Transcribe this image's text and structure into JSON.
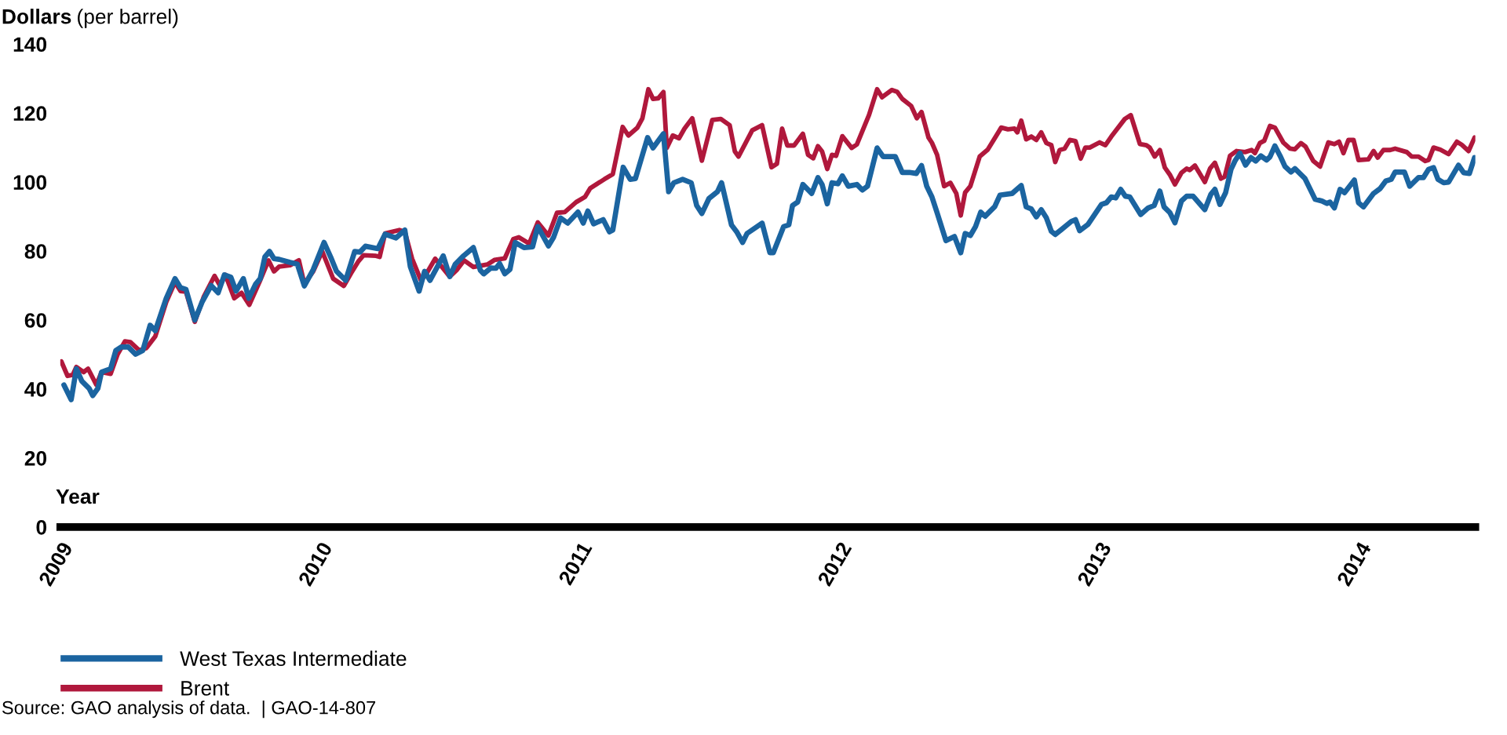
{
  "chart_data": {
    "type": "line",
    "ylabel": "Dollars (per barrel)",
    "xlabel": "Year",
    "xlim": [
      2009,
      2014.45
    ],
    "xticks": [
      2009,
      2010,
      2011,
      2012,
      2013,
      2014
    ],
    "ylim": [
      0,
      140
    ],
    "yticks": [
      0,
      20,
      40,
      60,
      80,
      100,
      120,
      140
    ],
    "grid": false,
    "legend": "bottom left",
    "annotations": [
      "Source: GAO analysis of data.  | GAO-14-807"
    ],
    "series": [
      {
        "name": "West Texas Intermediate",
        "color": "#1b64a0",
        "x": [
          2009.014,
          2009.042,
          2009.062,
          2009.083,
          2009.111,
          2009.125,
          2009.145,
          2009.159,
          2009.194,
          2009.214,
          2009.235,
          2009.262,
          2009.29,
          2009.318,
          2009.346,
          2009.366,
          2009.408,
          2009.442,
          2009.463,
          2009.484,
          2009.518,
          2009.546,
          2009.581,
          2009.608,
          2009.632,
          2009.657,
          2009.677,
          2009.705,
          2009.726,
          2009.753,
          2009.77,
          2009.788,
          2009.806,
          2009.823,
          2009.843,
          2009.885,
          2009.913,
          2009.94,
          2009.974,
          2010.016,
          2010.044,
          2010.064,
          2010.099,
          2010.134,
          2010.154,
          2010.175,
          2010.223,
          2010.251,
          2010.293,
          2010.327,
          2010.348,
          2010.382,
          2010.403,
          2010.424,
          2010.475,
          2010.5,
          2010.521,
          2010.553,
          2010.591,
          2010.618,
          2010.631,
          2010.658,
          2010.678,
          2010.692,
          2010.712,
          2010.732,
          2010.752,
          2010.786,
          2010.819,
          2010.839,
          2010.88,
          2010.9,
          2010.927,
          2010.954,
          2010.994,
          2011.014,
          2011.032,
          2011.054,
          2011.091,
          2011.115,
          2011.128,
          2011.168,
          2011.195,
          2011.215,
          2011.262,
          2011.283,
          2011.323,
          2011.343,
          2011.363,
          2011.397,
          2011.43,
          2011.451,
          2011.471,
          2011.498,
          2011.531,
          2011.547,
          2011.585,
          2011.605,
          2011.628,
          2011.645,
          2011.703,
          2011.733,
          2011.746,
          2011.786,
          2011.806,
          2011.82,
          2011.84,
          2011.86,
          2011.894,
          2011.918,
          2011.934,
          2011.954,
          2011.972,
          2011.995,
          2012.012,
          2012.035,
          2012.068,
          2012.089,
          2012.109,
          2012.146,
          2012.169,
          2012.216,
          2012.243,
          2012.27,
          2012.297,
          2012.317,
          2012.337,
          2012.357,
          2012.377,
          2012.411,
          2012.444,
          2012.468,
          2012.485,
          2012.505,
          2012.525,
          2012.545,
          2012.562,
          2012.599,
          2012.619,
          2012.666,
          2012.701,
          2012.72,
          2012.74,
          2012.759,
          2012.778,
          2012.798,
          2012.817,
          2012.832,
          2012.855,
          2012.894,
          2012.91,
          2012.926,
          2012.958,
          2013.01,
          2013.029,
          2013.048,
          2013.065,
          2013.084,
          2013.102,
          2013.119,
          2013.161,
          2013.19,
          2013.213,
          2013.235,
          2013.251,
          2013.273,
          2013.293,
          2013.318,
          2013.338,
          2013.363,
          2013.408,
          2013.431,
          2013.447,
          2013.466,
          2013.488,
          2013.509,
          2013.524,
          2013.543,
          2013.565,
          2013.586,
          2013.604,
          2013.624,
          2013.646,
          2013.659,
          2013.678,
          2013.698,
          2013.717,
          2013.74,
          2013.755,
          2013.794,
          2013.833,
          2013.859,
          2013.878,
          2013.89,
          2013.907,
          2013.929,
          2013.946,
          2013.984,
          2014.0,
          2014.019,
          2014.058,
          2014.083,
          2014.105,
          2014.126,
          2014.141,
          2014.177,
          2014.197,
          2014.231,
          2014.25,
          2014.27,
          2014.289,
          2014.306,
          2014.328,
          2014.347,
          2014.385,
          2014.405,
          2014.427,
          2014.447
        ],
        "values": [
          41.2,
          36.9,
          45.9,
          42.3,
          40.2,
          38.1,
          40.2,
          44.9,
          45.9,
          51.2,
          52.2,
          52.2,
          50.1,
          51.2,
          58.5,
          56.9,
          66.3,
          72.0,
          69.4,
          68.9,
          60.0,
          65.2,
          70.0,
          67.9,
          73.1,
          72.4,
          68.4,
          72.0,
          66.3,
          70.5,
          72.0,
          78.3,
          79.9,
          77.8,
          77.6,
          76.7,
          76.2,
          69.9,
          74.6,
          82.5,
          77.8,
          74.1,
          71.5,
          79.9,
          79.7,
          81.4,
          80.7,
          84.9,
          83.8,
          86.1,
          75.5,
          68.4,
          74.1,
          71.5,
          78.6,
          72.6,
          76.2,
          78.6,
          81.0,
          74.4,
          73.4,
          75.1,
          75.0,
          76.4,
          73.4,
          74.7,
          82.5,
          81.0,
          81.2,
          87.1,
          81.5,
          84.0,
          89.6,
          88.1,
          91.3,
          88.1,
          91.6,
          87.9,
          89.1,
          85.6,
          86.1,
          104.3,
          100.8,
          101.0,
          112.9,
          109.9,
          114.0,
          97.2,
          99.8,
          100.8,
          99.8,
          93.2,
          90.9,
          95.2,
          97.2,
          99.8,
          87.6,
          85.6,
          82.5,
          85.1,
          88.1,
          79.5,
          79.5,
          87.1,
          87.6,
          93.2,
          94.2,
          99.3,
          96.7,
          101.3,
          99.3,
          93.7,
          99.8,
          99.5,
          101.8,
          98.8,
          99.3,
          97.7,
          98.8,
          109.9,
          107.4,
          107.4,
          102.8,
          102.8,
          102.5,
          104.8,
          98.8,
          95.7,
          91.1,
          83.0,
          84.2,
          79.5,
          85.1,
          84.5,
          87.1,
          91.3,
          90.1,
          92.9,
          96.2,
          96.7,
          99.0,
          92.8,
          92.2,
          89.9,
          92.0,
          89.6,
          85.7,
          84.8,
          86.2,
          88.6,
          89.1,
          85.9,
          87.7,
          93.5,
          94.0,
          95.7,
          95.4,
          97.9,
          95.9,
          95.7,
          90.6,
          92.5,
          93.2,
          97.4,
          92.8,
          91.2,
          88.2,
          94.5,
          95.9,
          95.9,
          92.0,
          96.4,
          97.9,
          93.5,
          96.9,
          103.7,
          106.1,
          108.4,
          104.9,
          107.1,
          106.1,
          107.6,
          106.4,
          107.3,
          110.5,
          107.6,
          104.5,
          102.9,
          103.9,
          101.0,
          95.0,
          94.5,
          93.8,
          94.2,
          92.5,
          97.9,
          96.9,
          100.6,
          94.0,
          92.8,
          96.7,
          98.1,
          100.3,
          100.8,
          102.9,
          102.9,
          98.8,
          101.3,
          101.3,
          103.7,
          104.2,
          100.8,
          99.8,
          100.0,
          104.9,
          102.7,
          102.5,
          107.1
        ]
      },
      {
        "name": "Brent",
        "color": "#b0183c",
        "x": [
          2009.004,
          2009.028,
          2009.048,
          2009.062,
          2009.09,
          2009.107,
          2009.139,
          2009.159,
          2009.194,
          2009.221,
          2009.249,
          2009.27,
          2009.304,
          2009.332,
          2009.366,
          2009.408,
          2009.442,
          2009.463,
          2009.484,
          2009.518,
          2009.553,
          2009.594,
          2009.615,
          2009.636,
          2009.67,
          2009.698,
          2009.728,
          2009.767,
          2009.802,
          2009.823,
          2009.843,
          2009.885,
          2009.919,
          2009.94,
          2009.974,
          2010.009,
          2010.051,
          2010.092,
          2010.12,
          2010.147,
          2010.168,
          2010.216,
          2010.23,
          2010.251,
          2010.306,
          2010.327,
          2010.355,
          2010.389,
          2010.41,
          2010.444,
          2010.5,
          2010.528,
          2010.555,
          2010.591,
          2010.645,
          2010.672,
          2010.712,
          2010.745,
          2010.766,
          2010.806,
          2010.839,
          2010.88,
          2010.913,
          2010.943,
          2010.987,
          2011.021,
          2011.041,
          2011.095,
          2011.128,
          2011.166,
          2011.188,
          2011.222,
          2011.242,
          2011.265,
          2011.283,
          2011.303,
          2011.323,
          2011.336,
          2011.359,
          2011.383,
          2011.404,
          2011.434,
          2011.471,
          2011.511,
          2011.544,
          2011.578,
          2011.598,
          2011.612,
          2011.665,
          2011.703,
          2011.739,
          2011.76,
          2011.78,
          2011.8,
          2011.826,
          2011.86,
          2011.88,
          2011.9,
          2011.918,
          2011.934,
          2011.954,
          2011.972,
          2011.988,
          2012.012,
          2012.048,
          2012.068,
          2012.115,
          2012.146,
          2012.165,
          2012.203,
          2012.223,
          2012.243,
          2012.277,
          2012.299,
          2012.317,
          2012.344,
          2012.357,
          2012.377,
          2012.404,
          2012.428,
          2012.451,
          2012.468,
          2012.485,
          2012.505,
          2012.541,
          2012.572,
          2012.624,
          2012.65,
          2012.675,
          2012.686,
          2012.701,
          2012.72,
          2012.74,
          2012.759,
          2012.778,
          2012.798,
          2012.817,
          2012.832,
          2012.849,
          2012.868,
          2012.888,
          2012.91,
          2012.93,
          2012.948,
          2012.965,
          2013.003,
          2013.025,
          2013.048,
          2013.1,
          2013.123,
          2013.158,
          2013.183,
          2013.196,
          2013.215,
          2013.235,
          2013.254,
          2013.273,
          2013.293,
          2013.318,
          2013.338,
          2013.35,
          2013.37,
          2013.408,
          2013.428,
          2013.447,
          2013.47,
          2013.485,
          2013.505,
          2013.53,
          2013.563,
          2013.588,
          2013.601,
          2013.62,
          2013.637,
          2013.659,
          2013.678,
          2013.71,
          2013.736,
          2013.755,
          2013.778,
          2013.796,
          2013.826,
          2013.852,
          2013.884,
          2013.907,
          2013.925,
          2013.942,
          2013.961,
          2013.981,
          2014.0,
          2014.038,
          2014.058,
          2014.074,
          2014.096,
          2014.122,
          2014.141,
          2014.186,
          2014.205,
          2014.231,
          2014.257,
          2014.27,
          2014.289,
          2014.315,
          2014.347,
          2014.379,
          2014.398,
          2014.424,
          2014.447
        ],
        "values": [
          48.0,
          43.8,
          44.1,
          46.4,
          44.9,
          45.9,
          41.2,
          44.9,
          44.4,
          50.1,
          53.8,
          53.6,
          51.2,
          51.9,
          55.3,
          65.2,
          71.0,
          68.4,
          68.2,
          59.5,
          66.8,
          72.8,
          70.0,
          73.1,
          66.3,
          67.9,
          64.4,
          71.0,
          77.3,
          74.1,
          75.5,
          75.9,
          77.3,
          70.5,
          74.1,
          79.9,
          72.0,
          69.9,
          73.6,
          76.9,
          78.8,
          78.6,
          78.3,
          85.1,
          86.1,
          85.6,
          77.8,
          71.5,
          73.4,
          77.8,
          72.6,
          74.6,
          77.3,
          75.4,
          76.1,
          77.4,
          77.9,
          83.5,
          84.0,
          82.2,
          88.3,
          84.5,
          91.1,
          91.3,
          94.2,
          95.7,
          98.2,
          100.8,
          102.3,
          116.0,
          113.5,
          115.7,
          118.5,
          126.9,
          124.1,
          124.3,
          126.1,
          109.9,
          113.5,
          112.7,
          115.5,
          118.5,
          106.2,
          118.0,
          118.3,
          116.5,
          108.9,
          107.4,
          115.0,
          116.5,
          104.3,
          105.3,
          115.5,
          110.6,
          110.6,
          114.0,
          107.9,
          106.9,
          110.4,
          108.9,
          103.8,
          107.9,
          107.6,
          113.3,
          109.9,
          110.9,
          119.5,
          126.9,
          124.6,
          126.7,
          126.2,
          124.1,
          122.1,
          118.5,
          120.3,
          112.9,
          111.4,
          107.9,
          98.8,
          99.8,
          96.7,
          90.3,
          97.0,
          98.8,
          107.4,
          109.4,
          115.8,
          115.3,
          115.5,
          114.4,
          117.8,
          112.4,
          113.2,
          112.2,
          114.4,
          111.3,
          110.7,
          105.8,
          109.3,
          109.7,
          112.2,
          111.9,
          106.8,
          110.0,
          110.0,
          111.5,
          110.7,
          113.2,
          118.3,
          119.4,
          111.0,
          110.7,
          110.0,
          107.4,
          109.3,
          104.2,
          102.2,
          99.3,
          102.7,
          103.9,
          103.5,
          104.8,
          100.0,
          103.9,
          105.6,
          101.0,
          101.6,
          107.6,
          109.0,
          108.7,
          109.3,
          108.4,
          111.3,
          112.0,
          116.3,
          115.8,
          111.5,
          109.7,
          109.5,
          111.3,
          110.3,
          106.1,
          104.5,
          111.5,
          111.0,
          111.7,
          108.4,
          112.2,
          112.2,
          106.4,
          106.6,
          109.0,
          107.1,
          109.3,
          109.3,
          109.7,
          108.7,
          107.4,
          107.4,
          106.1,
          106.4,
          110.0,
          109.4,
          108.1,
          111.7,
          110.8,
          109.0,
          112.9
        ]
      }
    ]
  }
}
